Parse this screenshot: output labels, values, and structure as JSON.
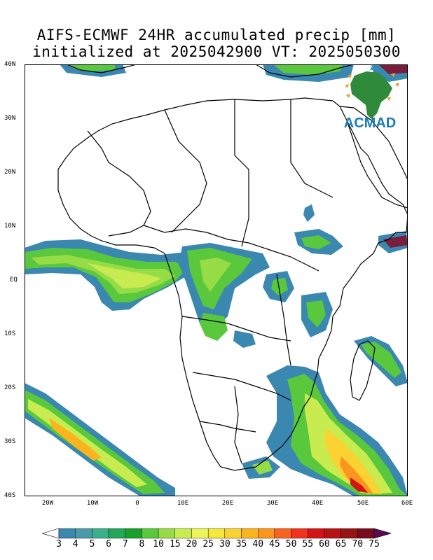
{
  "title": {
    "line1": "AIFS-ECMWF 24HR accumulated precip [mm]",
    "line2": "initialized at 2025042900 VT: 2025050300"
  },
  "logo": {
    "text": "ACMAD",
    "icon": "africa-map-logo-icon"
  },
  "axes": {
    "y_ticks": [
      "40N",
      "30N",
      "20N",
      "10N",
      "EQ",
      "10S",
      "20S",
      "30S",
      "40S"
    ],
    "x_ticks": [
      "20W",
      "10W",
      "0",
      "10E",
      "20E",
      "30E",
      "40E",
      "50E",
      "60E"
    ],
    "lon_range": [
      -25,
      60
    ],
    "lat_range": [
      -40,
      40
    ]
  },
  "colorbar": {
    "levels": [
      "3",
      "4",
      "5",
      "6",
      "7",
      "8",
      "10",
      "15",
      "20",
      "25",
      "30",
      "35",
      "40",
      "45",
      "50",
      "55",
      "60",
      "65",
      "70",
      "75"
    ],
    "colors": [
      "#3a88b0",
      "#4a9aa8",
      "#3cb08c",
      "#22a858",
      "#18a02c",
      "#5ac83c",
      "#96dc46",
      "#c8ec50",
      "#eef55a",
      "#f7e63c",
      "#fad232",
      "#fcb41e",
      "#fa961e",
      "#f8641e",
      "#f0321e",
      "#d21414",
      "#b41414",
      "#961414",
      "#780a1e",
      "#5a0a50"
    ]
  },
  "colors": {
    "land_outline": "#000000",
    "background": "#ffffff"
  }
}
